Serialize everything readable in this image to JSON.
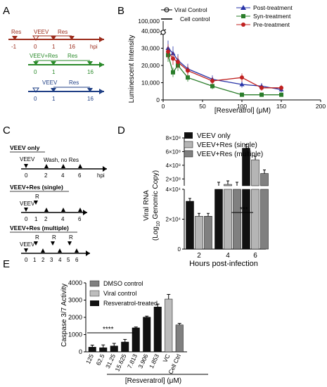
{
  "panels": {
    "a": {
      "letter": "A",
      "rows": [
        {
          "top_label": "Res",
          "top_label2": "VEEV",
          "mid_label": "Res",
          "ticks": [
            "-1",
            "0",
            "1",
            "16"
          ],
          "unit": "hpi",
          "color": "#9b2a1a"
        },
        {
          "top_label": "VEEV+Res",
          "mid_label": "Res",
          "ticks": [
            "0",
            "1",
            "16"
          ],
          "color": "#2a8a2a"
        },
        {
          "top_label": "VEEV",
          "mid_label": "Res",
          "ticks": [
            "0",
            "1",
            "16"
          ],
          "color": "#1f3f85"
        }
      ]
    },
    "c": {
      "letter": "C",
      "rows": [
        {
          "title": "VEEV only",
          "virus": "VEEV",
          "note": "Wash, no Res",
          "ticks": [
            "0",
            "2",
            "4",
            "6"
          ],
          "unit": "hpi"
        },
        {
          "title": "VEEV+Res (single)",
          "virus": "VEEV",
          "res": "R",
          "ticks": [
            "0",
            "1",
            "2",
            "4",
            "6"
          ]
        },
        {
          "title": "VEEV+Res (multiple)",
          "virus": "VEEV",
          "res": [
            "R",
            "R",
            "R"
          ],
          "ticks": [
            "0",
            "1",
            "2",
            "3",
            "4",
            "5",
            "6"
          ]
        }
      ]
    }
  },
  "chart_data": [
    {
      "panel": "B",
      "type": "scatter",
      "xlabel": "[Resveratrol] (μM)",
      "ylabel": "Luminescent Intensity",
      "xlim": [
        0,
        200
      ],
      "ylim": [
        0,
        100000
      ],
      "xticks": [
        "0",
        "50",
        "100",
        "150",
        "200"
      ],
      "yticks": [
        "0",
        "10,000",
        "20,000",
        "30,000",
        "40,000",
        "100,000"
      ],
      "legend": [
        "Viral Control",
        "Cell control",
        "Post-treatment",
        "Syn-treatment",
        "Pre-treatment"
      ],
      "series": [
        {
          "name": "Post-treatment",
          "color": "#2733a8",
          "marker": "triangle",
          "x": [
            6.25,
            12.5,
            18.75,
            31.25,
            62.5,
            100,
            125,
            150
          ],
          "y": [
            30000,
            27000,
            23000,
            18000,
            12000,
            9000,
            8000,
            6000
          ]
        },
        {
          "name": "Syn-treatment",
          "color": "#2a7d2a",
          "marker": "square",
          "x": [
            6.25,
            12.5,
            18.75,
            31.25,
            62.5,
            100,
            125,
            150
          ],
          "y": [
            26000,
            16000,
            20000,
            13000,
            8000,
            3000,
            3000,
            3000
          ]
        },
        {
          "name": "Pre-treatment",
          "color": "#c0201f",
          "marker": "circle",
          "x": [
            6.25,
            12.5,
            18.75,
            31.25,
            62.5,
            100,
            125,
            150
          ],
          "y": [
            28000,
            24000,
            22000,
            17000,
            11000,
            13000,
            7000,
            7000
          ]
        }
      ]
    },
    {
      "panel": "D",
      "type": "bar",
      "xlabel": "Hours post-infection",
      "ylabel_line1": "Viral RNA",
      "ylabel_line2": "(Log",
      "ylabel_sub": "10",
      "ylabel_line2_rest": " Genomic Copy)",
      "categories": [
        "2",
        "4",
        "6"
      ],
      "yticks_lower": [
        "0",
        "2×10⁴",
        "4×10⁴"
      ],
      "yticks_upper": [
        "2×10⁸",
        "4×10⁸",
        "6×10⁸",
        "8×10⁸"
      ],
      "series": [
        {
          "name": "VEEV only",
          "color": "#111111",
          "values": [
            32000,
            100000000,
            650000000
          ]
        },
        {
          "name": "VEEV+Res (single)",
          "color": "#b5b5b5",
          "values": [
            22000,
            120000000,
            480000000
          ]
        },
        {
          "name": "VEEV+Res (multiple)",
          "color": "#808080",
          "values": [
            22000,
            100000000,
            280000000
          ]
        }
      ],
      "annotation": "***"
    },
    {
      "panel": "E",
      "type": "bar",
      "xlabel": "[Resveratrol] (μM)",
      "ylabel": "Caspase 3/7 Activity",
      "ylim": [
        0,
        4000
      ],
      "yticks": [
        "0",
        "1000",
        "2000",
        "3000",
        "4000"
      ],
      "categories": [
        "125",
        "62.5",
        "31.25",
        "15.625",
        "7.813",
        "3.906",
        "1.853",
        "VC",
        "Cell Ctrl"
      ],
      "values": [
        270,
        240,
        340,
        570,
        1390,
        2010,
        2600,
        3060,
        1560
      ],
      "errors": [
        120,
        160,
        150,
        150,
        50,
        60,
        170,
        270,
        90
      ],
      "legend": [
        "DMSO control",
        "Viral control",
        "Resveratrol-treated"
      ],
      "legend_colors": [
        "#808080",
        "#bdbdbd",
        "#111111"
      ],
      "bar_colors": [
        "#111111",
        "#111111",
        "#111111",
        "#111111",
        "#111111",
        "#111111",
        "#111111",
        "#bdbdbd",
        "#808080"
      ],
      "annotation": "****"
    }
  ]
}
